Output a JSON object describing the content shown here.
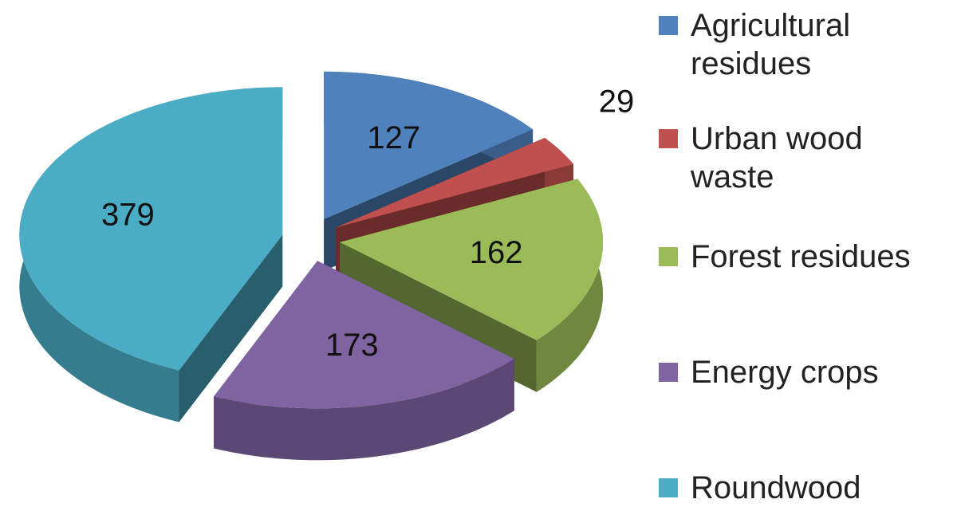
{
  "chart_data": {
    "type": "pie3d",
    "categories": [
      "Agricultural residues",
      "Urban wood waste",
      "Forest residues",
      "Energy crops",
      "Roundwood"
    ],
    "values": [
      127,
      29,
      162,
      173,
      379
    ],
    "colors": [
      "#4f81bd",
      "#c0504d",
      "#9bbb59",
      "#8064a2",
      "#4bacc6"
    ],
    "legend": "right"
  }
}
